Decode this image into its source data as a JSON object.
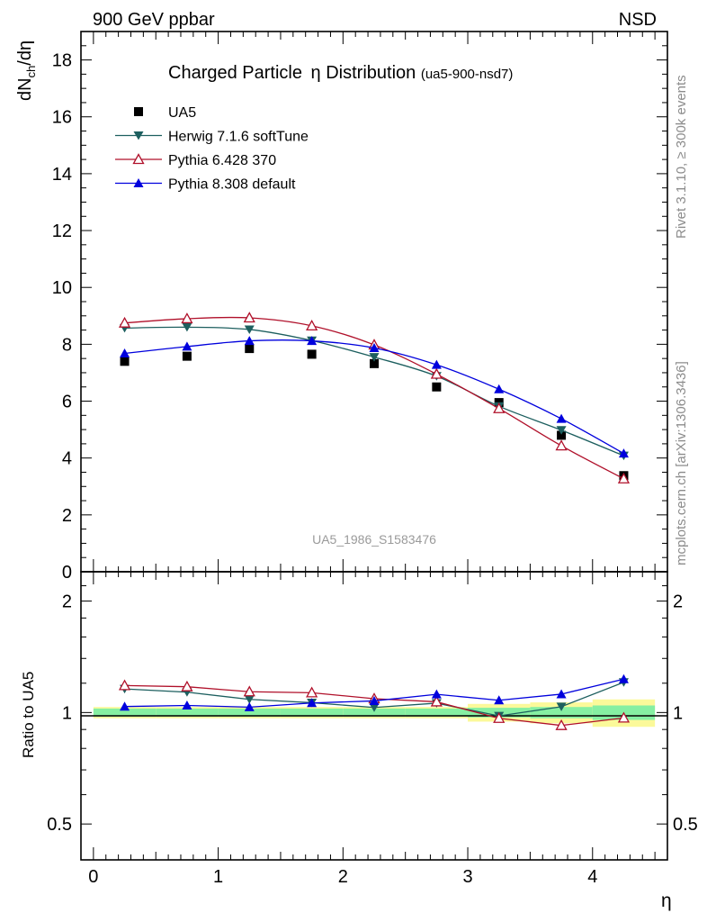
{
  "header": {
    "left": "900 GeV ppbar",
    "right": "NSD"
  },
  "side_labels": {
    "rivet": "Rivet 3.1.10, ≥ 300k events",
    "mcplots": "mcplots.cern.ch [arXiv:1306.3436]"
  },
  "chart_data": [
    {
      "type": "scatter",
      "title_main": "Charged Particle",
      "title_symbol": "η",
      "title_main_2": " Distribution",
      "title_sub": "(ua5-900-nsd7)",
      "watermark": "UA5_1986_S1583476",
      "ylabel": "dN_ch/dη",
      "ylim": [
        0,
        19
      ],
      "yticks": [
        0,
        2,
        4,
        6,
        8,
        10,
        12,
        14,
        16,
        18
      ],
      "xlim": [
        -0.1,
        4.6
      ],
      "legend_position": "top-left",
      "x": [
        0.25,
        0.75,
        1.25,
        1.75,
        2.25,
        2.75,
        3.25,
        3.75,
        4.25
      ],
      "series": [
        {
          "name": "UA5",
          "color": "#000000",
          "marker": "square",
          "values": [
            7.4,
            7.58,
            7.85,
            7.65,
            7.32,
            6.5,
            5.95,
            4.8,
            3.38
          ]
        },
        {
          "name": "Herwig 7.1.6 softTune",
          "color": "#1d5f5f",
          "marker": "triangle-down",
          "values": [
            8.57,
            8.6,
            8.52,
            8.13,
            7.55,
            6.88,
            5.82,
            4.98,
            4.08
          ]
        },
        {
          "name": "Pythia 6.428 370",
          "color": "#b0102a",
          "marker": "triangle-up-open",
          "values": [
            8.75,
            8.9,
            8.93,
            8.65,
            7.98,
            6.95,
            5.74,
            4.43,
            3.27
          ]
        },
        {
          "name": "Pythia 8.308 default",
          "color": "#0000dd",
          "marker": "triangle-up",
          "values": [
            7.68,
            7.92,
            8.12,
            8.12,
            7.87,
            7.28,
            6.42,
            5.38,
            4.16
          ]
        }
      ]
    },
    {
      "type": "line",
      "ylabel": "Ratio to UA5",
      "xlabel": "η",
      "y_scale": "log",
      "ylim": [
        0.4,
        2.4
      ],
      "yticks": [
        0.5,
        1,
        2
      ],
      "yticklabels": [
        "0.5",
        "1",
        "2"
      ],
      "xticks": [
        0,
        1,
        2,
        3,
        4
      ],
      "xlim": [
        -0.1,
        4.6
      ],
      "x": [
        0.25,
        0.75,
        1.25,
        1.75,
        2.25,
        2.75,
        3.25,
        3.75,
        4.25
      ],
      "ref_band_edges": [
        0,
        0.5,
        1,
        1.5,
        2,
        2.5,
        3,
        3.5,
        4,
        4.5
      ],
      "ref_band_inner": [
        0.025,
        0.025,
        0.025,
        0.025,
        0.025,
        0.025,
        0.03,
        0.035,
        0.045
      ],
      "ref_band_outer": [
        0.035,
        0.035,
        0.035,
        0.035,
        0.035,
        0.035,
        0.055,
        0.065,
        0.085
      ],
      "series": [
        {
          "name": "Herwig 7.1.6 softTune",
          "color": "#1d5f5f",
          "marker": "triangle-down",
          "values": [
            1.158,
            1.135,
            1.085,
            1.063,
            1.032,
            1.06,
            0.979,
            1.037,
            1.207
          ]
        },
        {
          "name": "Pythia 6.428 370",
          "color": "#b0102a",
          "marker": "triangle-up-open",
          "values": [
            1.183,
            1.174,
            1.138,
            1.131,
            1.09,
            1.069,
            0.965,
            0.923,
            0.967
          ]
        },
        {
          "name": "Pythia 8.308 default",
          "color": "#0000dd",
          "marker": "triangle-up",
          "values": [
            1.038,
            1.045,
            1.034,
            1.061,
            1.075,
            1.12,
            1.079,
            1.121,
            1.231
          ]
        }
      ]
    }
  ]
}
